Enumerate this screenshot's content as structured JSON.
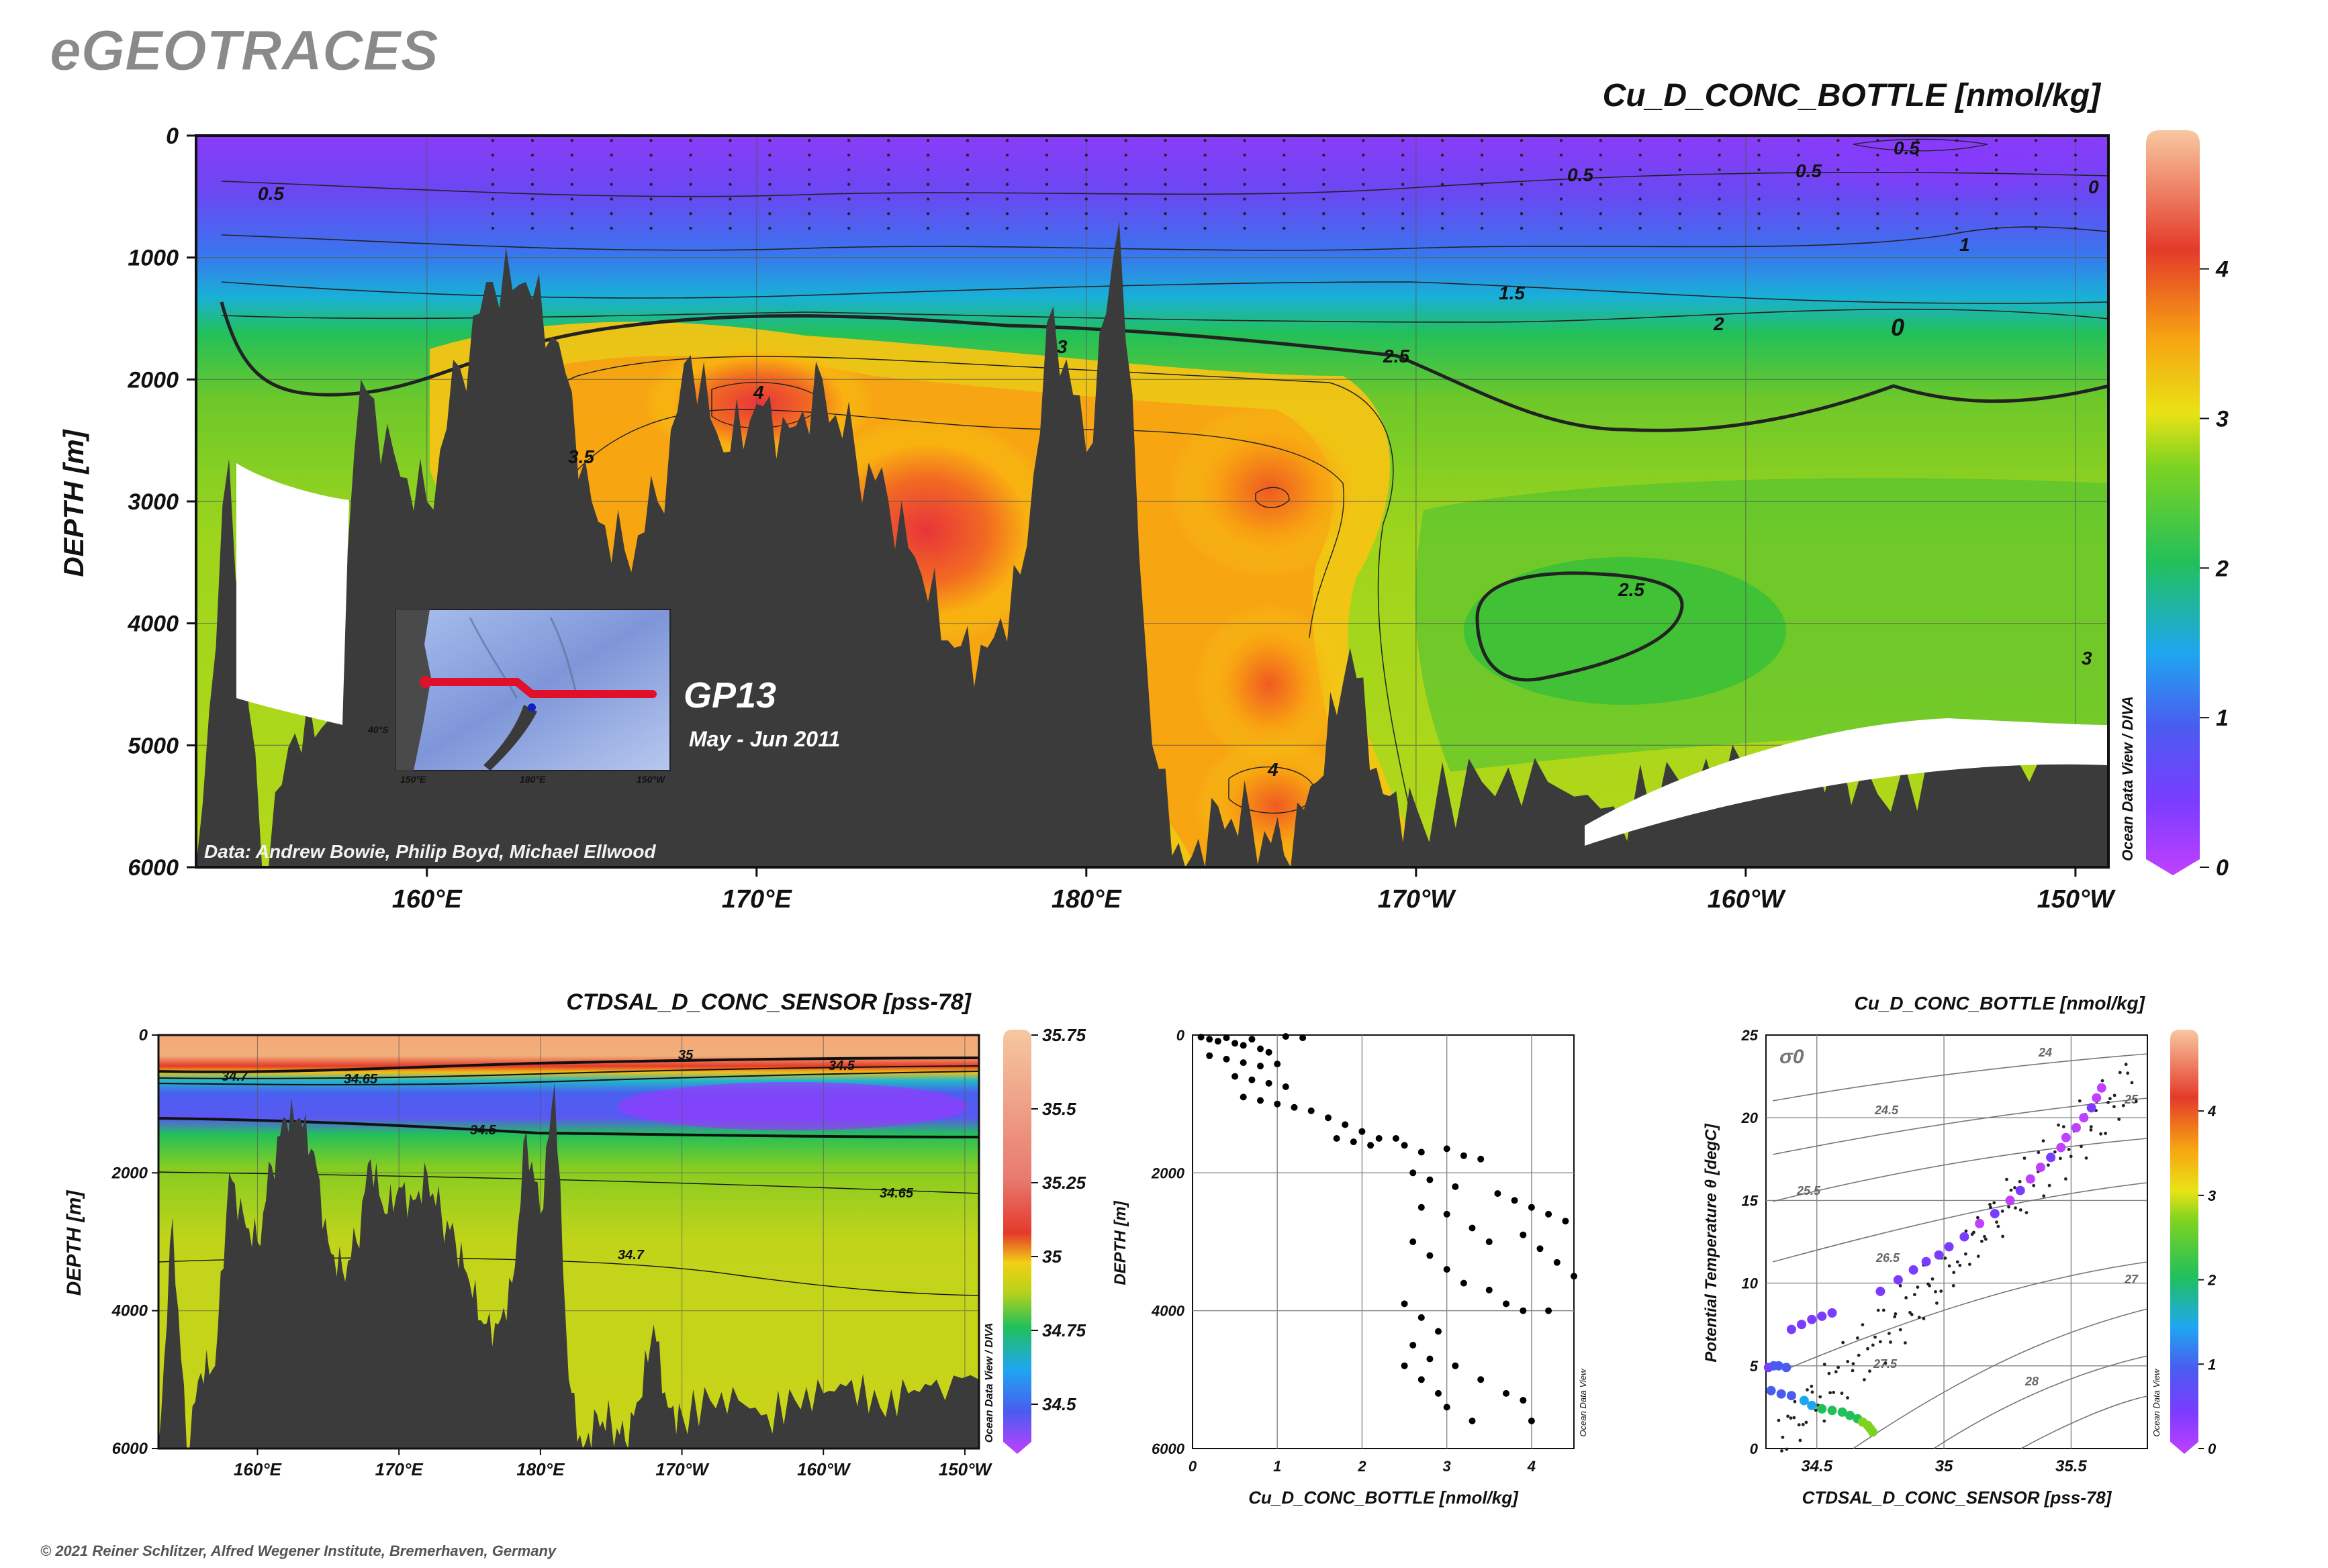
{
  "brand": "eGEOTRACES",
  "copyright": "© 2021 Reiner Schlitzer, Alfred Wegener Institute, Bremerhaven, Germany",
  "main_section": {
    "title": "Cu_D_CONC_BOTTLE [nmol/kg]",
    "ylabel": "DEPTH [m]",
    "y_ticks": [
      "0",
      "1000",
      "2000",
      "3000",
      "4000",
      "5000",
      "6000"
    ],
    "x_ticks": [
      "160°E",
      "170°E",
      "180°E",
      "170°W",
      "160°W",
      "150°W"
    ],
    "colorbar_ticks": [
      "0",
      "1",
      "2",
      "3",
      "4"
    ],
    "odv_credit": "Ocean Data View / DIVA",
    "data_credit": "Data: Andrew Bowie, Philip Boyd, Michael Ellwood",
    "cruise_name": "GP13",
    "cruise_dates": "May - Jun 2011",
    "contour_labels": [
      "0.5",
      "0.5",
      "0.5",
      "0.5",
      "0",
      "1",
      "1.5",
      "2",
      "2.5",
      "3",
      "3",
      "3.5",
      "4",
      "4",
      "2.5",
      "0"
    ],
    "inset_map": {
      "lat_label": "40°S",
      "lon_labels": [
        "150°E",
        "180°E",
        "150°W"
      ],
      "colors": {
        "track": "#e0102a",
        "ocean": "#7e96d8",
        "land": "#4a4a4a"
      }
    }
  },
  "salinity_section": {
    "title": "CTDSAL_D_CONC_SENSOR [pss-78]",
    "ylabel": "DEPTH [m]",
    "y_ticks": [
      "0",
      "2000",
      "4000",
      "6000"
    ],
    "x_ticks": [
      "160°E",
      "170°E",
      "180°E",
      "170°W",
      "160°W",
      "150°W"
    ],
    "colorbar_ticks": [
      "35.75",
      "35.5",
      "35.25",
      "35",
      "34.75",
      "34.5"
    ],
    "odv_credit": "Ocean Data View / DIVA",
    "contour_labels": [
      "34.7",
      "34.65",
      "35",
      "34.5",
      "34.5",
      "34.65",
      "34.7"
    ]
  },
  "profile_plot": {
    "xlabel": "Cu_D_CONC_BOTTLE [nmol/kg]",
    "ylabel": "DEPTH [m]",
    "x_ticks": [
      "0",
      "1",
      "2",
      "3",
      "4"
    ],
    "y_ticks": [
      "0",
      "2000",
      "4000",
      "6000"
    ],
    "odv_credit": "Ocean Data View"
  },
  "ts_plot": {
    "title": "Cu_D_CONC_BOTTLE [nmol/kg]",
    "xlabel": "CTDSAL_D_CONC_SENSOR [pss-78]",
    "ylabel": "Potential Temperature θ [degC]",
    "x_ticks": [
      "34.5",
      "35",
      "35.5"
    ],
    "y_ticks": [
      "0",
      "5",
      "10",
      "15",
      "20",
      "25"
    ],
    "colorbar_ticks": [
      "0",
      "1",
      "2",
      "3",
      "4"
    ],
    "sigma_label": "σ0",
    "isopycnal_labels": [
      "24",
      "24.5",
      "25",
      "25.5",
      "26.5",
      "27",
      "27.5",
      "28"
    ],
    "odv_credit": "Ocean Data View"
  },
  "chart_data": [
    {
      "type": "heatmap",
      "title": "Cu_D_CONC_BOTTLE [nmol/kg]",
      "xlabel": "",
      "ylabel": "DEPTH [m]",
      "xlim": [
        153,
        211
      ],
      "ylim": [
        6000,
        0
      ],
      "colorbar_range": [
        0,
        4.9
      ],
      "colormap": [
        "#c040ff",
        "#4a5cf0",
        "#1ea7f0",
        "#22c05a",
        "#7ed321",
        "#e9e215",
        "#f7a412",
        "#e43a2a",
        "#f8c8a0"
      ],
      "contour_levels": [
        0,
        0.5,
        1,
        1.5,
        2,
        2.5,
        3,
        3.5,
        4
      ],
      "bathymetry_depth_m": [
        [
          153,
          6000
        ],
        [
          154,
          2650
        ],
        [
          155,
          6000
        ],
        [
          156,
          4900
        ],
        [
          157,
          4800
        ],
        [
          158,
          2000
        ],
        [
          159,
          2600
        ],
        [
          160,
          3000
        ],
        [
          161,
          1900
        ],
        [
          162,
          1200
        ],
        [
          163,
          1200
        ],
        [
          164,
          1700
        ],
        [
          165,
          3000
        ],
        [
          166,
          3400
        ],
        [
          167,
          3000
        ],
        [
          168,
          1800
        ],
        [
          169,
          2600
        ],
        [
          170,
          2200
        ],
        [
          171,
          2400
        ],
        [
          172,
          2000
        ],
        [
          173,
          2600
        ],
        [
          174,
          3000
        ],
        [
          175,
          3600
        ],
        [
          176,
          4200
        ],
        [
          177,
          4200
        ],
        [
          178,
          3600
        ],
        [
          179,
          1400
        ],
        [
          180,
          2600
        ],
        [
          181,
          700
        ],
        [
          182,
          5000
        ],
        [
          183,
          6000
        ],
        [
          184,
          5500
        ],
        [
          185,
          5600
        ],
        [
          186,
          5900
        ],
        [
          187,
          5300
        ],
        [
          188,
          4200
        ],
        [
          189,
          5400
        ],
        [
          190,
          5500
        ],
        [
          192,
          5300
        ],
        [
          194,
          5300
        ],
        [
          196,
          5500
        ],
        [
          198,
          5300
        ],
        [
          200,
          5200
        ],
        [
          202,
          5000
        ],
        [
          204,
          5400
        ],
        [
          206,
          5200
        ],
        [
          208,
          5000
        ],
        [
          211,
          5000
        ]
      ]
    },
    {
      "type": "heatmap",
      "title": "CTDSAL_D_CONC_SENSOR [pss-78]",
      "xlabel": "",
      "ylabel": "DEPTH [m]",
      "xlim": [
        153,
        211
      ],
      "ylim": [
        6000,
        0
      ],
      "colorbar_range": [
        34.35,
        35.75
      ],
      "contour_levels": [
        34.5,
        34.65,
        34.7,
        35
      ]
    },
    {
      "type": "scatter",
      "title": "",
      "xlabel": "Cu_D_CONC_BOTTLE [nmol/kg]",
      "ylabel": "DEPTH [m]",
      "xlim": [
        0,
        4.5
      ],
      "ylim": [
        6000,
        0
      ],
      "grid": true,
      "series": [
        {
          "values": [
            [
              0.1,
              30
            ],
            [
              0.2,
              60
            ],
            [
              0.3,
              90
            ],
            [
              0.4,
              40
            ],
            [
              0.5,
              120
            ],
            [
              0.6,
              150
            ],
            [
              0.7,
              60
            ],
            [
              0.8,
              200
            ],
            [
              0.9,
              250
            ],
            [
              1.1,
              20
            ],
            [
              1.3,
              40
            ],
            [
              0.2,
              300
            ],
            [
              0.4,
              350
            ],
            [
              0.6,
              400
            ],
            [
              0.8,
              450
            ],
            [
              1.0,
              420
            ],
            [
              0.5,
              600
            ],
            [
              0.7,
              650
            ],
            [
              0.9,
              700
            ],
            [
              1.1,
              750
            ],
            [
              0.6,
              900
            ],
            [
              0.8,
              950
            ],
            [
              1.0,
              1000
            ],
            [
              1.2,
              1050
            ],
            [
              1.4,
              1100
            ],
            [
              1.6,
              1200
            ],
            [
              1.8,
              1300
            ],
            [
              2.0,
              1400
            ],
            [
              2.2,
              1500
            ],
            [
              2.4,
              1500
            ],
            [
              1.7,
              1500
            ],
            [
              1.9,
              1550
            ],
            [
              2.1,
              1600
            ],
            [
              2.5,
              1600
            ],
            [
              2.7,
              1700
            ],
            [
              3.0,
              1650
            ],
            [
              3.2,
              1750
            ],
            [
              3.4,
              1800
            ],
            [
              2.6,
              2000
            ],
            [
              2.8,
              2100
            ],
            [
              3.1,
              2200
            ],
            [
              3.6,
              2300
            ],
            [
              3.8,
              2400
            ],
            [
              4.0,
              2500
            ],
            [
              4.2,
              2600
            ],
            [
              4.4,
              2700
            ],
            [
              2.7,
              2500
            ],
            [
              3.0,
              2600
            ],
            [
              3.3,
              2800
            ],
            [
              3.5,
              3000
            ],
            [
              3.9,
              2900
            ],
            [
              4.1,
              3100
            ],
            [
              4.3,
              3300
            ],
            [
              4.5,
              3500
            ],
            [
              2.6,
              3000
            ],
            [
              2.8,
              3200
            ],
            [
              3.0,
              3400
            ],
            [
              3.2,
              3600
            ],
            [
              3.5,
              3700
            ],
            [
              3.7,
              3900
            ],
            [
              3.9,
              4000
            ],
            [
              4.2,
              4000
            ],
            [
              2.5,
              3900
            ],
            [
              2.7,
              4100
            ],
            [
              2.9,
              4300
            ],
            [
              2.6,
              4500
            ],
            [
              2.8,
              4700
            ],
            [
              3.1,
              4800
            ],
            [
              3.4,
              5000
            ],
            [
              3.7,
              5200
            ],
            [
              3.9,
              5300
            ],
            [
              4.0,
              5600
            ],
            [
              2.5,
              4800
            ],
            [
              2.7,
              5000
            ],
            [
              2.9,
              5200
            ],
            [
              3.0,
              5400
            ],
            [
              3.3,
              5600
            ]
          ]
        }
      ]
    },
    {
      "type": "scatter",
      "title": "Cu_D_CONC_BOTTLE [nmol/kg]",
      "xlabel": "CTDSAL_D_CONC_SENSOR [pss-78]",
      "ylabel": "Potential Temperature θ [degC]",
      "xlim": [
        34.3,
        35.8
      ],
      "ylim": [
        0,
        25
      ],
      "series": [
        {
          "values": [
            [
              34.31,
              4.9,
              0.9
            ],
            [
              34.33,
              5.0,
              1.0
            ],
            [
              34.35,
              5.0,
              1.1
            ],
            [
              34.38,
              4.9,
              1.0
            ],
            [
              34.32,
              3.5,
              1.2
            ],
            [
              34.36,
              3.3,
              1.4
            ],
            [
              34.4,
              3.2,
              1.3
            ],
            [
              34.45,
              2.9,
              1.5
            ],
            [
              34.48,
              2.6,
              1.8
            ],
            [
              34.52,
              2.4,
              2.0
            ],
            [
              34.56,
              2.3,
              2.1
            ],
            [
              34.6,
              2.2,
              2.3
            ],
            [
              34.63,
              2.0,
              2.4
            ],
            [
              34.66,
              1.8,
              2.6
            ],
            [
              34.68,
              1.6,
              2.7
            ],
            [
              34.7,
              1.4,
              2.8
            ],
            [
              34.71,
              1.2,
              2.8
            ],
            [
              34.72,
              1.0,
              2.9
            ],
            [
              34.4,
              7.2,
              0.7
            ],
            [
              34.44,
              7.5,
              0.6
            ],
            [
              34.48,
              7.8,
              0.6
            ],
            [
              34.52,
              8.0,
              0.5
            ],
            [
              34.56,
              8.2,
              0.5
            ],
            [
              34.75,
              9.5,
              0.7
            ],
            [
              34.82,
              10.2,
              0.9
            ],
            [
              34.88,
              10.8,
              0.8
            ],
            [
              34.93,
              11.3,
              0.6
            ],
            [
              34.98,
              11.7,
              0.5
            ],
            [
              35.02,
              12.2,
              0.6
            ],
            [
              35.08,
              12.8,
              0.5
            ],
            [
              35.14,
              13.6,
              0.4
            ],
            [
              35.2,
              14.2,
              0.5
            ],
            [
              35.26,
              15.0,
              0.4
            ],
            [
              35.3,
              15.6,
              0.5
            ],
            [
              35.34,
              16.3,
              0.3
            ],
            [
              35.38,
              17.0,
              0.4
            ],
            [
              35.42,
              17.6,
              0.5
            ],
            [
              35.46,
              18.2,
              0.4
            ],
            [
              35.48,
              18.8,
              0.3
            ],
            [
              35.52,
              19.4,
              0.4
            ],
            [
              35.55,
              20.0,
              0.3
            ],
            [
              35.58,
              20.6,
              0.5
            ],
            [
              35.6,
              21.2,
              0.4
            ],
            [
              35.62,
              21.8,
              0.3
            ]
          ]
        }
      ]
    }
  ]
}
